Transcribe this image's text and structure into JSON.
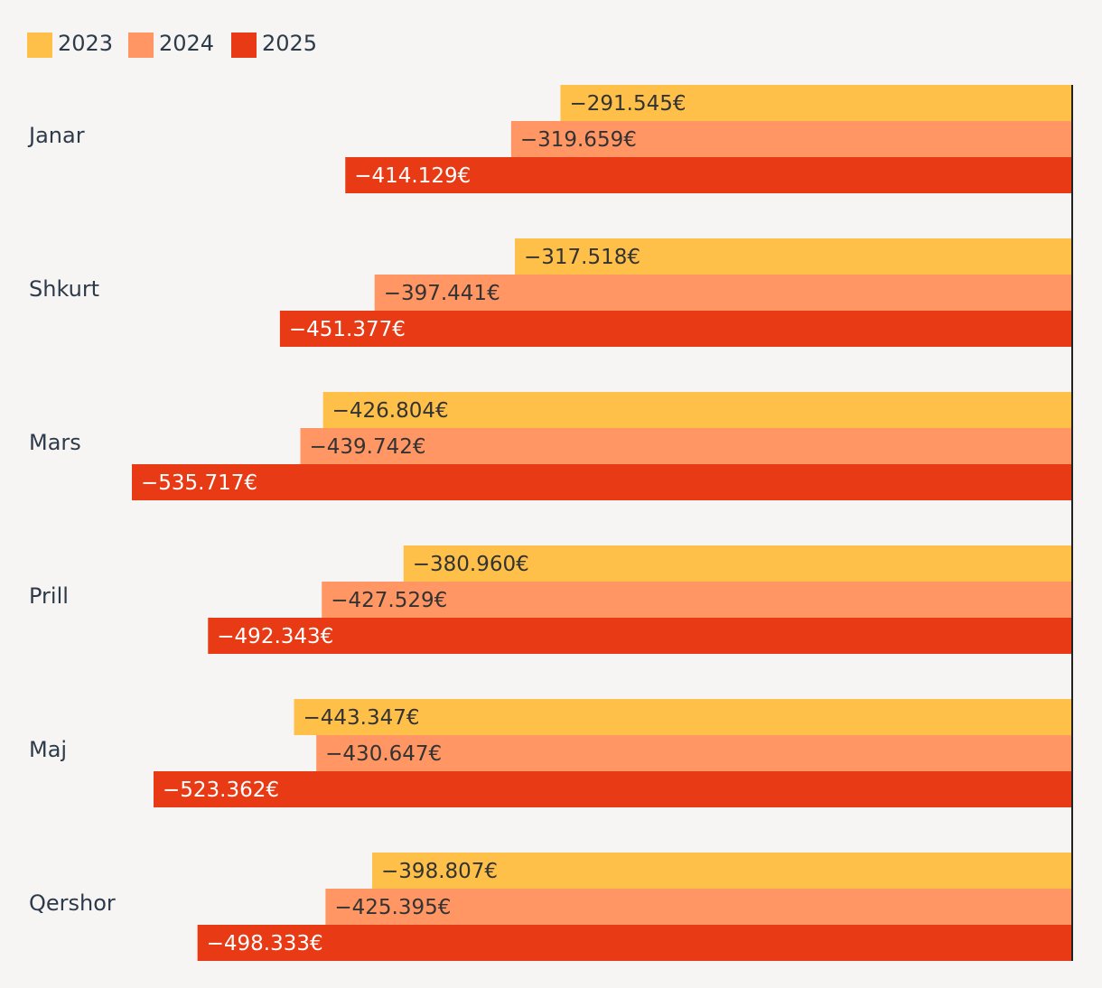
{
  "colors": {
    "background": "#f7f5f3",
    "axis": "#222222",
    "text": "#2d3a4a",
    "label_dark": "#333333",
    "label_light": "#ffffff"
  },
  "chart_data": {
    "type": "bar",
    "orientation": "horizontal",
    "title": "",
    "xlabel": "",
    "ylabel": "",
    "grid": false,
    "legend_position": "top-left",
    "xlim": [
      -550000,
      0
    ],
    "value_format": {
      "prefix_sign": "−",
      "thousands_sep": ".",
      "suffix": "€"
    },
    "categories": [
      "Janar",
      "Shkurt",
      "Mars",
      "Prill",
      "Maj",
      "Qershor"
    ],
    "series": [
      {
        "name": "2023",
        "color": "#ffc04a",
        "label_color": "#333333",
        "values": [
          -291545,
          -317518,
          -426804,
          -380960,
          -443347,
          -398807
        ],
        "labels": [
          "−291.545€",
          "−317.518€",
          "−426.804€",
          "−380.960€",
          "−443.347€",
          "−398.807€"
        ]
      },
      {
        "name": "2024",
        "color": "#ff9663",
        "label_color": "#333333",
        "values": [
          -319659,
          -397441,
          -439742,
          -427529,
          -430647,
          -425395
        ],
        "labels": [
          "−319.659€",
          "−397.441€",
          "−439.742€",
          "−427.529€",
          "−430.647€",
          "−425.395€"
        ]
      },
      {
        "name": "2025",
        "color": "#e83a14",
        "label_color": "#ffffff",
        "values": [
          -414129,
          -451377,
          -535717,
          -492343,
          -523362,
          -498333
        ],
        "labels": [
          "−414.129€",
          "−451.377€",
          "−535.717€",
          "−492.343€",
          "−523.362€",
          "−498.333€"
        ]
      }
    ]
  }
}
